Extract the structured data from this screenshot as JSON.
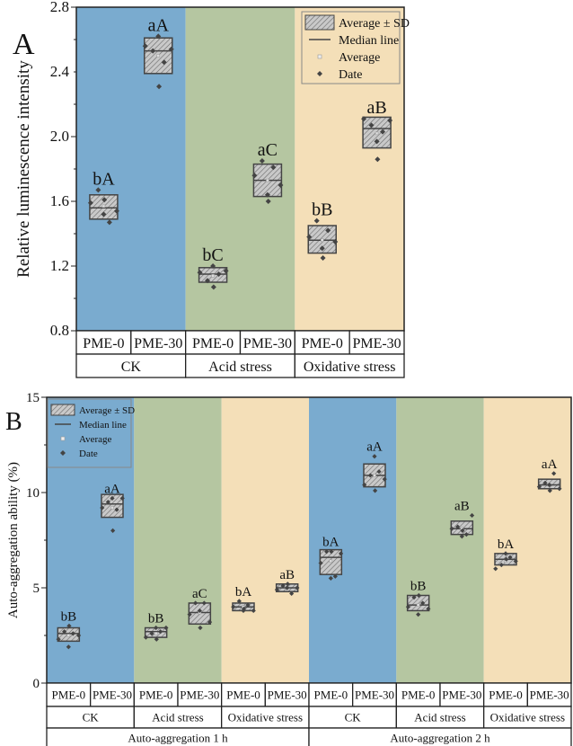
{
  "colors": {
    "ck": "#7aabcf",
    "acid": "#b5c6a1",
    "oxidative": "#f4dfb8",
    "box": "#c8c8c8",
    "point": "#444444"
  },
  "legend": {
    "items": [
      "Average ± SD",
      "Median line",
      "Average",
      "Date"
    ]
  },
  "chart_data": [
    {
      "panel_label": "A",
      "type": "box",
      "ylabel": "Relative luminescence intensity",
      "ylim": [
        0.8,
        2.8
      ],
      "yticks": [
        0.8,
        1.2,
        1.6,
        2.0,
        2.4,
        2.8
      ],
      "grid": false,
      "legend_placement": "top-right",
      "groups": [
        {
          "name": "CK",
          "color": "ck"
        },
        {
          "name": "Acid stress",
          "color": "acid"
        },
        {
          "name": "Oxidative stress",
          "color": "oxidative"
        }
      ],
      "categories": [
        "PME-0",
        "PME-30",
        "PME-0",
        "PME-30",
        "PME-0",
        "PME-30"
      ],
      "boxes": [
        {
          "label": "bA",
          "low": 1.49,
          "high": 1.64,
          "median": 1.56,
          "average": 1.57,
          "points": [
            1.59,
            1.67,
            1.52,
            1.61,
            1.47,
            1.54
          ]
        },
        {
          "label": "aA",
          "low": 2.39,
          "high": 2.61,
          "median": 2.53,
          "average": 2.5,
          "points": [
            2.56,
            2.53,
            2.62,
            2.31,
            2.46,
            2.54
          ]
        },
        {
          "label": "bC",
          "low": 1.1,
          "high": 1.19,
          "median": 1.15,
          "average": 1.14,
          "points": [
            1.16,
            1.11,
            1.2,
            1.07,
            1.15,
            1.17
          ]
        },
        {
          "label": "aC",
          "low": 1.63,
          "high": 1.83,
          "median": 1.73,
          "average": 1.73,
          "points": [
            1.76,
            1.85,
            1.64,
            1.6,
            1.81,
            1.7
          ]
        },
        {
          "label": "bB",
          "low": 1.28,
          "high": 1.45,
          "median": 1.36,
          "average": 1.36,
          "points": [
            1.38,
            1.48,
            1.31,
            1.25,
            1.42,
            1.35
          ]
        },
        {
          "label": "aB",
          "low": 1.93,
          "high": 2.12,
          "median": 2.05,
          "average": 2.02,
          "points": [
            2.11,
            2.07,
            1.97,
            1.86,
            2.03,
            2.1
          ]
        }
      ]
    },
    {
      "panel_label": "B",
      "type": "box",
      "ylabel": "Auto-aggregation ability (%)",
      "ylim": [
        0,
        15
      ],
      "yticks": [
        0,
        5,
        10,
        15
      ],
      "grid": false,
      "legend_placement": "top-left",
      "groups": [
        {
          "name": "CK",
          "color": "ck"
        },
        {
          "name": "Acid stress",
          "color": "acid"
        },
        {
          "name": "Oxidative stress",
          "color": "oxidative"
        },
        {
          "name": "CK",
          "color": "ck"
        },
        {
          "name": "Acid stress",
          "color": "acid"
        },
        {
          "name": "Oxidative stress",
          "color": "oxidative"
        }
      ],
      "supergroups": [
        "Auto-aggregation 1 h",
        "Auto-aggregation 2 h"
      ],
      "categories": [
        "PME-0",
        "PME-30",
        "PME-0",
        "PME-30",
        "PME-0",
        "PME-30",
        "PME-0",
        "PME-30",
        "PME-0",
        "PME-30",
        "PME-0",
        "PME-30"
      ],
      "boxes": [
        {
          "label": "bB",
          "low": 2.2,
          "high": 2.9,
          "median": 2.6,
          "average": 2.5,
          "points": [
            2.3,
            2.7,
            1.9,
            3.0,
            2.6,
            2.5
          ]
        },
        {
          "label": "aA",
          "low": 8.7,
          "high": 9.9,
          "median": 9.4,
          "average": 9.2,
          "points": [
            9.2,
            9.5,
            9.7,
            8.0,
            9.1,
            9.7
          ]
        },
        {
          "label": "bB",
          "low": 2.4,
          "high": 2.9,
          "median": 2.7,
          "average": 2.6,
          "points": [
            2.4,
            2.6,
            2.9,
            2.3,
            2.7,
            2.9
          ]
        },
        {
          "label": "aC",
          "low": 3.1,
          "high": 4.2,
          "median": 3.7,
          "average": 3.7,
          "points": [
            3.6,
            4.2,
            3.8,
            2.9,
            4.2,
            3.2
          ]
        },
        {
          "label": "bA",
          "low": 3.8,
          "high": 4.2,
          "median": 4.0,
          "average": 4.0,
          "points": [
            4.0,
            4.3,
            3.8,
            3.9,
            4.1,
            3.8
          ]
        },
        {
          "label": "aB",
          "low": 4.8,
          "high": 5.2,
          "median": 5.0,
          "average": 5.0,
          "points": [
            4.9,
            5.1,
            5.0,
            5.2,
            4.7,
            5.0
          ]
        },
        {
          "label": "bA",
          "low": 5.7,
          "high": 7.0,
          "median": 6.6,
          "average": 6.4,
          "points": [
            6.3,
            6.9,
            5.5,
            6.9,
            5.6,
            6.8
          ]
        },
        {
          "label": "aA",
          "low": 10.3,
          "high": 11.5,
          "median": 10.9,
          "average": 10.9,
          "points": [
            10.4,
            10.9,
            11.9,
            10.1,
            11.1,
            10.7
          ]
        },
        {
          "label": "bB",
          "low": 3.8,
          "high": 4.6,
          "median": 4.1,
          "average": 4.1,
          "points": [
            4.0,
            4.5,
            3.6,
            4.6,
            4.2,
            3.9
          ]
        },
        {
          "label": "aB",
          "low": 7.8,
          "high": 8.5,
          "median": 8.1,
          "average": 8.1,
          "points": [
            8.1,
            8.2,
            7.7,
            8.0,
            7.8,
            8.8
          ]
        },
        {
          "label": "bA",
          "low": 6.2,
          "high": 6.8,
          "median": 6.5,
          "average": 6.4,
          "points": [
            6.0,
            6.2,
            6.8,
            6.5,
            6.6,
            6.4
          ]
        },
        {
          "label": "aA",
          "low": 10.2,
          "high": 10.7,
          "median": 10.4,
          "average": 10.4,
          "points": [
            10.3,
            10.5,
            10.4,
            10.1,
            11.0,
            10.2
          ]
        }
      ]
    }
  ]
}
